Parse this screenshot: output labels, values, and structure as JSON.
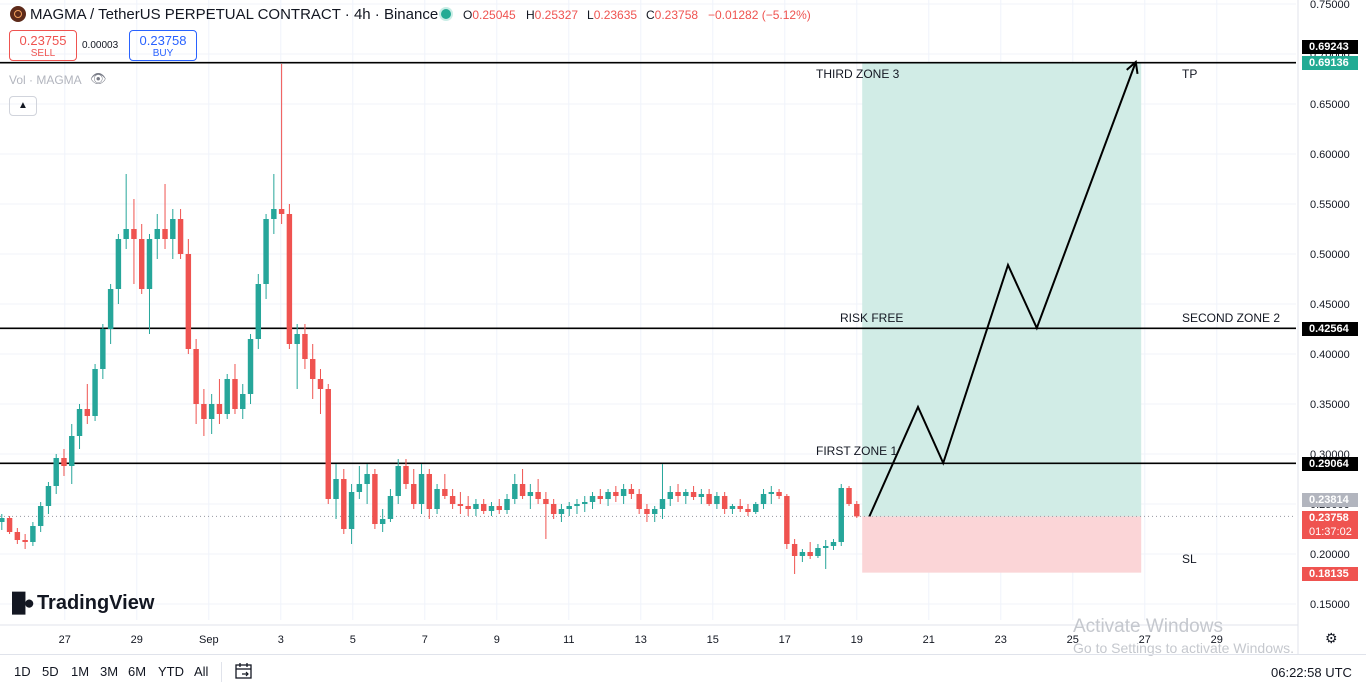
{
  "header": {
    "title": "MAGMA / TetherUS PERPETUAL CONTRACT · 4h · Binance",
    "ohlc": [
      {
        "key": "O",
        "value": "0.25045"
      },
      {
        "key": "H",
        "value": "0.25327"
      },
      {
        "key": "L",
        "value": "0.23635"
      },
      {
        "key": "C",
        "value": "0.23758"
      }
    ],
    "change": "−0.01282 (−5.12%)"
  },
  "trade": {
    "sell_price": "0.23755",
    "sell_label": "SELL",
    "spread": "0.00003",
    "buy_price": "0.23758",
    "buy_label": "BUY"
  },
  "volume_label": "Vol · MAGMA",
  "annotations": {
    "third_zone": "THIRD ZONE 3",
    "tp": "TP",
    "risk_free": "RISK FREE",
    "second_zone": "SECOND ZONE 2",
    "first_zone": "FIRST ZONE 1",
    "sl": "SL"
  },
  "price_tags": {
    "level_top": "0.69243",
    "tp_level": "0.69136",
    "second_level": "0.42564",
    "first_level": "0.29064",
    "current_high": "0.23814",
    "current": "0.23758",
    "countdown": "01:37:02",
    "sl_level": "0.18135"
  },
  "brand": "TradingView",
  "watermark": {
    "line1": "Activate Windows",
    "line2": "Go to Settings to activate Windows."
  },
  "timeframes": [
    "1D",
    "5D",
    "1M",
    "3M",
    "6M",
    "YTD",
    "All"
  ],
  "clock": "06:22:58 UTC",
  "colors": {
    "up": "#26a69a",
    "down": "#ef5350",
    "profit_zone": "#d1ece6",
    "loss_zone": "#fbd5d7",
    "level_line": "#000000"
  },
  "chart_data": {
    "type": "candlestick",
    "title": "MAGMA / TetherUS PERPETUAL CONTRACT · 4h · Binance",
    "y_ticks": [
      "0.75000",
      "0.70000",
      "0.65000",
      "0.60000",
      "0.55000",
      "0.50000",
      "0.45000",
      "0.40000",
      "0.35000",
      "0.30000",
      "0.25000",
      "0.20000",
      "0.15000"
    ],
    "ylim": [
      0.132,
      0.754
    ],
    "x_ticks": [
      {
        "label": "27",
        "day": 27
      },
      {
        "label": "29",
        "day": 29
      },
      {
        "label": "Sep",
        "day": 31
      },
      {
        "label": "3",
        "day": 33
      },
      {
        "label": "5",
        "day": 35
      },
      {
        "label": "7",
        "day": 37
      },
      {
        "label": "9",
        "day": 39
      },
      {
        "label": "11",
        "day": 41
      },
      {
        "label": "13",
        "day": 43
      },
      {
        "label": "15",
        "day": 45
      },
      {
        "label": "17",
        "day": 47
      },
      {
        "label": "19",
        "day": 49
      },
      {
        "label": "21",
        "day": 51
      },
      {
        "label": "23",
        "day": 53
      },
      {
        "label": "25",
        "day": 55
      },
      {
        "label": "27",
        "day": 57
      },
      {
        "label": "29",
        "day": 59
      }
    ],
    "xlim": [
      25.2,
      61.2
    ],
    "horizontal_levels": [
      0.69136,
      0.42564,
      0.29064
    ],
    "entry": 0.23758,
    "take_profit": 0.69136,
    "stop_loss": 0.18135,
    "position_days": [
      49.15,
      56.9
    ],
    "projection": [
      {
        "day": 49.35,
        "price": 0.2376
      },
      {
        "day": 50.7,
        "price": 0.347
      },
      {
        "day": 51.4,
        "price": 0.291
      },
      {
        "day": 53.2,
        "price": 0.489
      },
      {
        "day": 54.0,
        "price": 0.426
      },
      {
        "day": 56.75,
        "price": 0.692
      }
    ],
    "candles": [
      [
        0.232,
        0.24,
        0.224,
        0.236
      ],
      [
        0.236,
        0.238,
        0.22,
        0.222
      ],
      [
        0.222,
        0.226,
        0.21,
        0.214
      ],
      [
        0.214,
        0.22,
        0.205,
        0.212
      ],
      [
        0.212,
        0.232,
        0.208,
        0.228
      ],
      [
        0.228,
        0.252,
        0.222,
        0.248
      ],
      [
        0.248,
        0.272,
        0.24,
        0.268
      ],
      [
        0.268,
        0.3,
        0.26,
        0.296
      ],
      [
        0.296,
        0.305,
        0.278,
        0.288
      ],
      [
        0.288,
        0.33,
        0.27,
        0.318
      ],
      [
        0.318,
        0.35,
        0.305,
        0.345
      ],
      [
        0.345,
        0.37,
        0.33,
        0.338
      ],
      [
        0.338,
        0.39,
        0.333,
        0.385
      ],
      [
        0.385,
        0.43,
        0.375,
        0.425
      ],
      [
        0.425,
        0.47,
        0.41,
        0.465
      ],
      [
        0.465,
        0.52,
        0.45,
        0.515
      ],
      [
        0.515,
        0.58,
        0.505,
        0.525
      ],
      [
        0.525,
        0.555,
        0.47,
        0.515
      ],
      [
        0.515,
        0.53,
        0.46,
        0.465
      ],
      [
        0.465,
        0.52,
        0.42,
        0.515
      ],
      [
        0.515,
        0.54,
        0.495,
        0.525
      ],
      [
        0.525,
        0.57,
        0.505,
        0.515
      ],
      [
        0.515,
        0.545,
        0.495,
        0.535
      ],
      [
        0.535,
        0.545,
        0.495,
        0.5
      ],
      [
        0.5,
        0.515,
        0.4,
        0.405
      ],
      [
        0.405,
        0.415,
        0.33,
        0.35
      ],
      [
        0.35,
        0.365,
        0.318,
        0.335
      ],
      [
        0.335,
        0.36,
        0.32,
        0.35
      ],
      [
        0.35,
        0.375,
        0.33,
        0.34
      ],
      [
        0.34,
        0.38,
        0.335,
        0.375
      ],
      [
        0.375,
        0.39,
        0.34,
        0.345
      ],
      [
        0.345,
        0.37,
        0.335,
        0.36
      ],
      [
        0.36,
        0.42,
        0.35,
        0.415
      ],
      [
        0.415,
        0.48,
        0.405,
        0.47
      ],
      [
        0.47,
        0.54,
        0.455,
        0.535
      ],
      [
        0.535,
        0.58,
        0.52,
        0.545
      ],
      [
        0.545,
        0.69,
        0.53,
        0.54
      ],
      [
        0.54,
        0.55,
        0.405,
        0.41
      ],
      [
        0.41,
        0.43,
        0.365,
        0.42
      ],
      [
        0.42,
        0.43,
        0.385,
        0.395
      ],
      [
        0.395,
        0.41,
        0.355,
        0.375
      ],
      [
        0.375,
        0.385,
        0.34,
        0.365
      ],
      [
        0.365,
        0.37,
        0.25,
        0.255
      ],
      [
        0.255,
        0.29,
        0.235,
        0.275
      ],
      [
        0.275,
        0.285,
        0.22,
        0.225
      ],
      [
        0.225,
        0.27,
        0.21,
        0.262
      ],
      [
        0.262,
        0.288,
        0.255,
        0.27
      ],
      [
        0.27,
        0.29,
        0.25,
        0.28
      ],
      [
        0.28,
        0.285,
        0.225,
        0.23
      ],
      [
        0.23,
        0.245,
        0.222,
        0.235
      ],
      [
        0.235,
        0.265,
        0.232,
        0.258
      ],
      [
        0.258,
        0.295,
        0.25,
        0.288
      ],
      [
        0.288,
        0.295,
        0.265,
        0.27
      ],
      [
        0.27,
        0.285,
        0.245,
        0.25
      ],
      [
        0.25,
        0.29,
        0.24,
        0.28
      ],
      [
        0.28,
        0.285,
        0.235,
        0.245
      ],
      [
        0.245,
        0.27,
        0.24,
        0.265
      ],
      [
        0.265,
        0.28,
        0.255,
        0.258
      ],
      [
        0.258,
        0.265,
        0.245,
        0.25
      ],
      [
        0.25,
        0.262,
        0.24,
        0.248
      ],
      [
        0.248,
        0.258,
        0.238,
        0.245
      ],
      [
        0.245,
        0.255,
        0.238,
        0.25
      ],
      [
        0.25,
        0.255,
        0.24,
        0.243
      ],
      [
        0.243,
        0.252,
        0.238,
        0.248
      ],
      [
        0.248,
        0.255,
        0.24,
        0.244
      ],
      [
        0.244,
        0.26,
        0.24,
        0.255
      ],
      [
        0.255,
        0.28,
        0.25,
        0.27
      ],
      [
        0.27,
        0.285,
        0.255,
        0.258
      ],
      [
        0.258,
        0.27,
        0.245,
        0.262
      ],
      [
        0.262,
        0.275,
        0.25,
        0.255
      ],
      [
        0.255,
        0.262,
        0.215,
        0.25
      ],
      [
        0.25,
        0.255,
        0.235,
        0.24
      ],
      [
        0.24,
        0.25,
        0.232,
        0.245
      ],
      [
        0.245,
        0.252,
        0.238,
        0.248
      ],
      [
        0.248,
        0.255,
        0.24,
        0.25
      ],
      [
        0.25,
        0.258,
        0.242,
        0.252
      ],
      [
        0.252,
        0.262,
        0.245,
        0.258
      ],
      [
        0.258,
        0.265,
        0.25,
        0.255
      ],
      [
        0.255,
        0.265,
        0.248,
        0.262
      ],
      [
        0.262,
        0.268,
        0.252,
        0.258
      ],
      [
        0.258,
        0.27,
        0.25,
        0.265
      ],
      [
        0.265,
        0.27,
        0.255,
        0.26
      ],
      [
        0.26,
        0.265,
        0.24,
        0.245
      ],
      [
        0.245,
        0.25,
        0.232,
        0.24
      ],
      [
        0.24,
        0.248,
        0.232,
        0.245
      ],
      [
        0.245,
        0.29,
        0.235,
        0.255
      ],
      [
        0.255,
        0.268,
        0.248,
        0.262
      ],
      [
        0.262,
        0.27,
        0.252,
        0.258
      ],
      [
        0.258,
        0.265,
        0.25,
        0.262
      ],
      [
        0.262,
        0.268,
        0.254,
        0.257
      ],
      [
        0.257,
        0.265,
        0.25,
        0.26
      ],
      [
        0.26,
        0.265,
        0.248,
        0.25
      ],
      [
        0.25,
        0.262,
        0.245,
        0.258
      ],
      [
        0.258,
        0.262,
        0.24,
        0.245
      ],
      [
        0.245,
        0.25,
        0.24,
        0.248
      ],
      [
        0.248,
        0.255,
        0.242,
        0.245
      ],
      [
        0.245,
        0.25,
        0.238,
        0.242
      ],
      [
        0.242,
        0.252,
        0.24,
        0.25
      ],
      [
        0.25,
        0.265,
        0.245,
        0.26
      ],
      [
        0.26,
        0.268,
        0.25,
        0.262
      ],
      [
        0.262,
        0.265,
        0.255,
        0.258
      ],
      [
        0.258,
        0.26,
        0.205,
        0.21
      ],
      [
        0.21,
        0.215,
        0.18,
        0.198
      ],
      [
        0.198,
        0.205,
        0.192,
        0.202
      ],
      [
        0.202,
        0.212,
        0.195,
        0.198
      ],
      [
        0.198,
        0.21,
        0.196,
        0.206
      ],
      [
        0.206,
        0.214,
        0.185,
        0.208
      ],
      [
        0.208,
        0.215,
        0.204,
        0.212
      ],
      [
        0.212,
        0.27,
        0.208,
        0.266
      ],
      [
        0.266,
        0.268,
        0.248,
        0.25
      ],
      [
        0.25,
        0.253,
        0.236,
        0.2376
      ]
    ]
  }
}
